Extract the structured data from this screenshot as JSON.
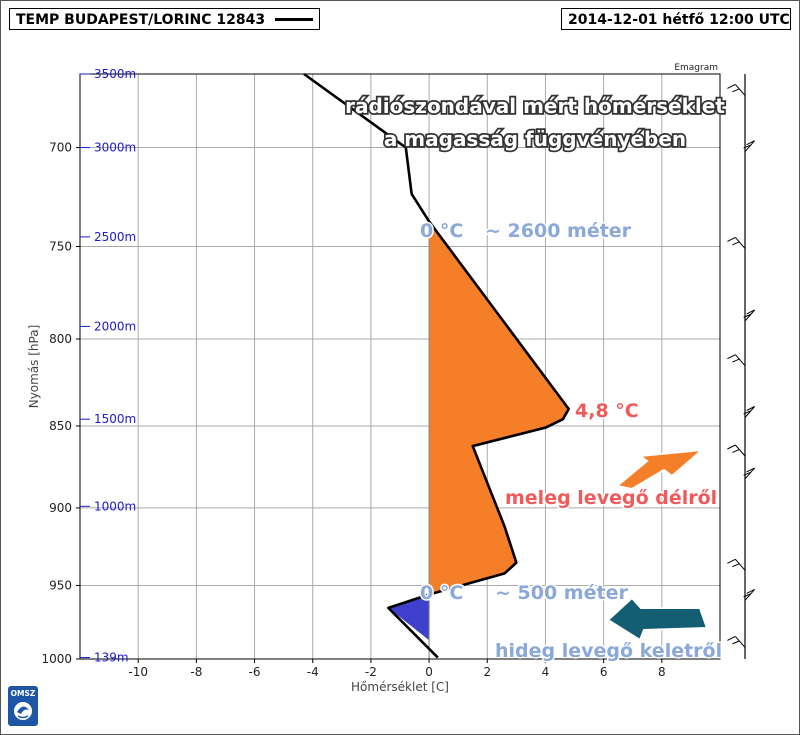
{
  "header": {
    "title": "TEMP BUDAPEST/LORINC 12843",
    "datetime": "2014-12-01 hétfő 12:00 UTC"
  },
  "logo": {
    "text": "OMSZ",
    "icon": "omsz-logo-icon"
  },
  "chart_data": {
    "type": "line",
    "title": "Emagram",
    "xlabel": "Hőmérséklet [C]",
    "ylabel": "Nyomás [hPa]",
    "xlim": [
      -12,
      10
    ],
    "ylim": [
      1000,
      665
    ],
    "x_ticks": [
      -10,
      -8,
      -6,
      -4,
      -2,
      0,
      2,
      4,
      6,
      8
    ],
    "y_ticks": [
      700,
      750,
      800,
      850,
      900,
      950,
      1000
    ],
    "height_labels": [
      {
        "label": "3500m",
        "p": 665
      },
      {
        "label": "3000m",
        "p": 700
      },
      {
        "label": "2500m",
        "p": 745
      },
      {
        "label": "2000m",
        "p": 793
      },
      {
        "label": "1500m",
        "p": 846
      },
      {
        "label": "1000m",
        "p": 899
      },
      {
        "label": "139m",
        "p": 999
      }
    ],
    "series": [
      {
        "color": "#000000",
        "points": [
          [
            -4.3,
            665
          ],
          [
            -0.8,
            700
          ],
          [
            -0.6,
            723
          ],
          [
            0,
            737
          ],
          [
            4.8,
            840
          ],
          [
            4.6,
            846
          ],
          [
            4.0,
            851
          ],
          [
            1.5,
            862
          ],
          [
            2.6,
            912
          ],
          [
            3.0,
            935
          ],
          [
            2.6,
            942
          ],
          [
            0,
            956
          ],
          [
            -1.4,
            965
          ],
          [
            0.3,
            999
          ]
        ]
      }
    ],
    "fills": [
      {
        "kind": "warm",
        "color": "#f47f28"
      },
      {
        "kind": "cold",
        "color": "#4040cf"
      }
    ],
    "grid": true,
    "wind_barbs": true
  },
  "annotations": {
    "main_title_line1": "rádiószondával mért hőmérséklet",
    "main_title_line2": "a magasság függvényében",
    "zero_upper": "0 °C",
    "zero_upper_height": "~ 2600 méter",
    "max_temp": "4,8 °C",
    "warm_air": "meleg levegő délről",
    "zero_lower": "0 °C",
    "zero_lower_height": "~ 500 méter",
    "cold_air": "hideg levegő keletről"
  },
  "colors": {
    "warm": "#f47f28",
    "cold": "#4040cf",
    "cold_arrow": "#145e73",
    "annotation_blue": "#8aa8d8",
    "annotation_red": "#f05a5a",
    "height_label": "#1a1ad0"
  }
}
